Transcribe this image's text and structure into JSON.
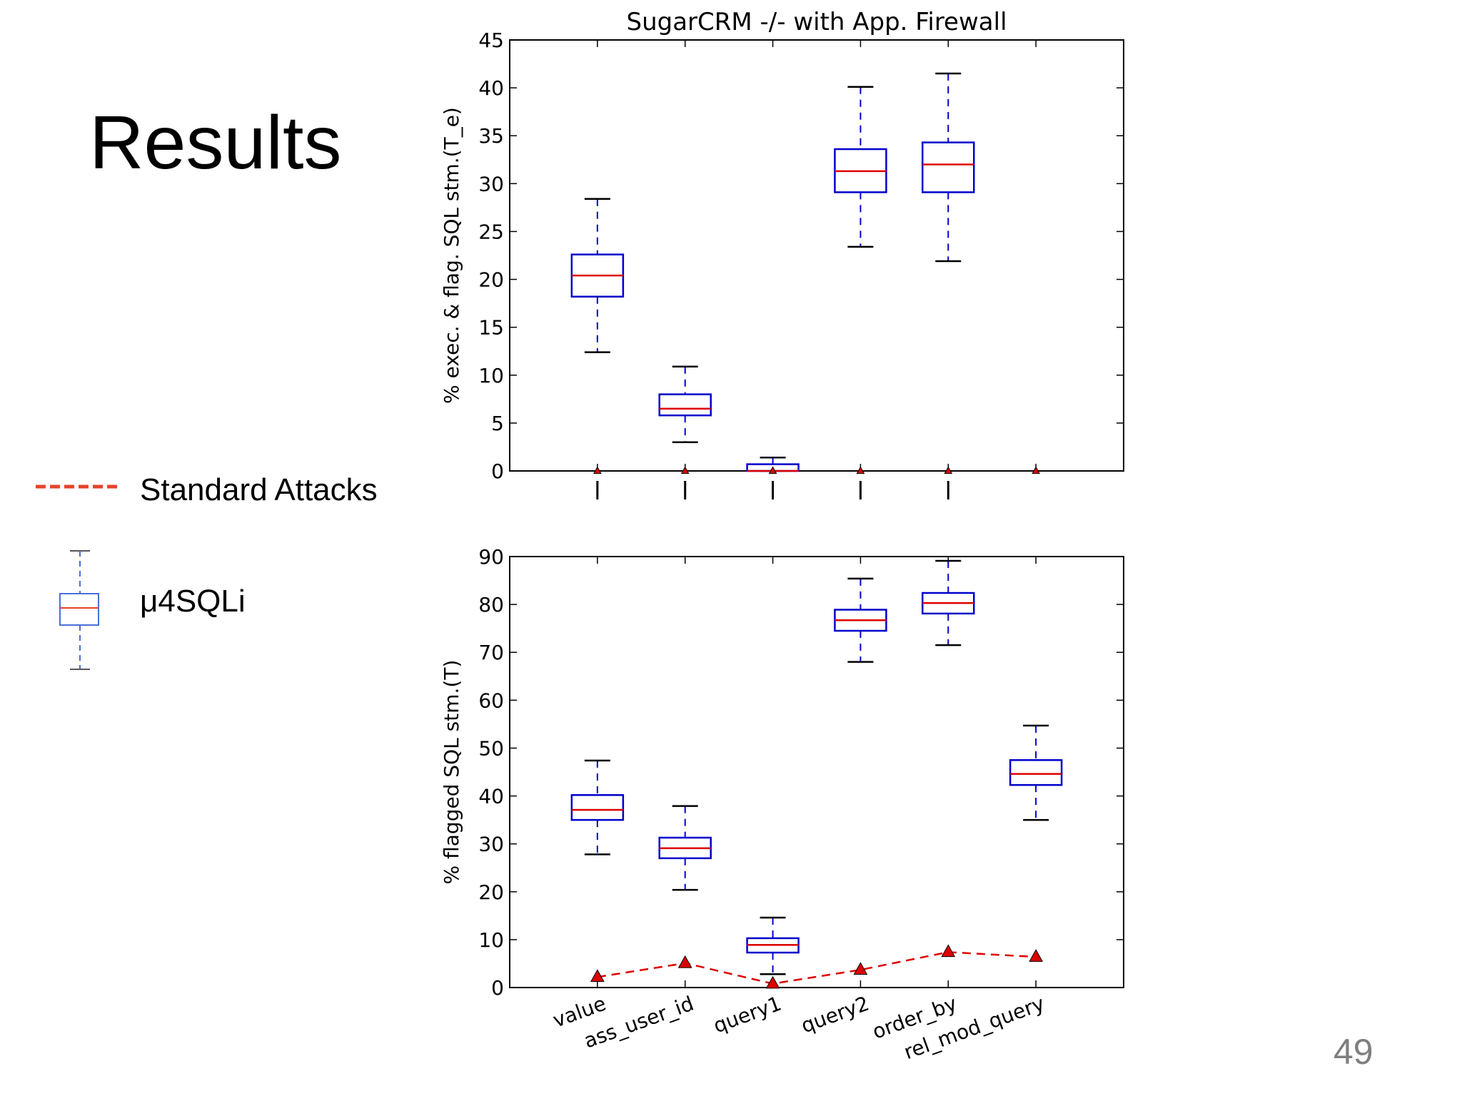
{
  "slide": {
    "title": "Results",
    "page_number": "49"
  },
  "legend": [
    {
      "label": "Standard Attacks",
      "color": "#e8412b",
      "style": "dashed-line"
    },
    {
      "label": "μ4SQLi",
      "color": "#4a6fd6",
      "style": "boxplot"
    }
  ],
  "colors": {
    "box": "#0000cc",
    "median": "#dd0000",
    "whisker_cap": "#000000",
    "standard_attacks": "#dd0000"
  },
  "chart_data": [
    {
      "type": "boxplot",
      "title": "SugarCRM -/- with App. Firewall",
      "ylabel": "% exec. & flag. SQL stm.(T_e)",
      "ylim": [
        0,
        45
      ],
      "yticks": [
        0,
        5,
        10,
        15,
        20,
        25,
        30,
        35,
        40,
        45
      ],
      "categories": [
        "value",
        "ass_user_id",
        "query1",
        "query2",
        "order_by",
        "rel_mod_query"
      ],
      "show_xtick_labels": false,
      "series": [
        {
          "name": "μ4SQLi",
          "boxes": [
            {
              "category": "value",
              "whislo": 12.4,
              "q1": 18.2,
              "med": 20.4,
              "q3": 22.6,
              "whishi": 28.4
            },
            {
              "category": "ass_user_id",
              "whislo": 3.0,
              "q1": 5.8,
              "med": 6.5,
              "q3": 8.0,
              "whishi": 10.9
            },
            {
              "category": "query1",
              "whislo": 0.0,
              "q1": 0.0,
              "med": 0.0,
              "q3": 0.7,
              "whishi": 1.4
            },
            {
              "category": "query2",
              "whislo": 23.4,
              "q1": 29.1,
              "med": 31.3,
              "q3": 33.6,
              "whishi": 40.1
            },
            {
              "category": "order_by",
              "whislo": 21.9,
              "q1": 29.1,
              "med": 32.0,
              "q3": 34.3,
              "whishi": 41.5
            }
          ]
        },
        {
          "name": "Standard Attacks",
          "values": [
            0,
            0,
            0,
            0,
            0,
            0
          ]
        }
      ]
    },
    {
      "type": "boxplot",
      "title": "",
      "ylabel": "% flagged SQL stm.(T)",
      "ylim": [
        0,
        90
      ],
      "yticks": [
        0,
        10,
        20,
        30,
        40,
        50,
        60,
        70,
        80,
        90
      ],
      "categories": [
        "value",
        "ass_user_id",
        "query1",
        "query2",
        "order_by",
        "rel_mod_query"
      ],
      "show_xtick_labels": true,
      "series": [
        {
          "name": "μ4SQLi",
          "boxes": [
            {
              "category": "value",
              "whislo": 27.8,
              "q1": 35.0,
              "med": 37.1,
              "q3": 40.2,
              "whishi": 47.4
            },
            {
              "category": "ass_user_id",
              "whislo": 20.4,
              "q1": 27.0,
              "med": 29.1,
              "q3": 31.3,
              "whishi": 37.9
            },
            {
              "category": "query1",
              "whislo": 2.8,
              "q1": 7.3,
              "med": 8.9,
              "q3": 10.3,
              "whishi": 14.6
            },
            {
              "category": "query2",
              "whislo": 68.0,
              "q1": 74.5,
              "med": 76.7,
              "q3": 78.9,
              "whishi": 85.4
            },
            {
              "category": "order_by",
              "whislo": 71.5,
              "q1": 78.1,
              "med": 80.3,
              "q3": 82.4,
              "whishi": 89.1
            },
            {
              "category": "rel_mod_query",
              "whislo": 35.0,
              "q1": 42.3,
              "med": 44.6,
              "q3": 47.5,
              "whishi": 54.7
            }
          ]
        },
        {
          "name": "Standard Attacks",
          "values": [
            2.2,
            5.1,
            0.8,
            3.7,
            7.4,
            6.4
          ]
        }
      ]
    }
  ]
}
